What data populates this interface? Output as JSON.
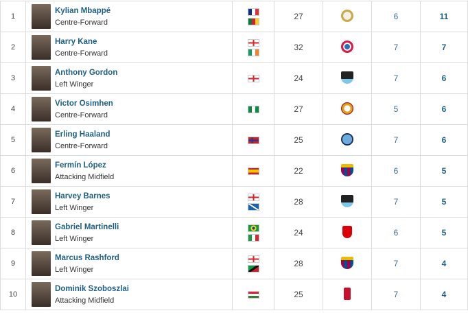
{
  "colors": {
    "link": "#1d5f86",
    "border": "#dcdcdc"
  },
  "rows": [
    {
      "rank": "1",
      "name": "Kylian Mbappé",
      "position": "Centre-Forward",
      "nationalities": [
        "france-flag",
        "cameroon-flag"
      ],
      "age": "27",
      "club": "real-madrid-crest",
      "apps": "6",
      "goals": "11"
    },
    {
      "rank": "2",
      "name": "Harry Kane",
      "position": "Centre-Forward",
      "nationalities": [
        "england-flag",
        "ireland-flag"
      ],
      "age": "32",
      "club": "bayern-munich-crest",
      "apps": "7",
      "goals": "7"
    },
    {
      "rank": "3",
      "name": "Anthony Gordon",
      "position": "Left Winger",
      "nationalities": [
        "england-flag"
      ],
      "age": "24",
      "club": "newcastle-crest",
      "apps": "7",
      "goals": "6"
    },
    {
      "rank": "4",
      "name": "Victor Osimhen",
      "position": "Centre-Forward",
      "nationalities": [
        "nigeria-flag"
      ],
      "age": "27",
      "club": "galatasaray-crest",
      "apps": "5",
      "goals": "6"
    },
    {
      "rank": "5",
      "name": "Erling Haaland",
      "position": "Centre-Forward",
      "nationalities": [
        "norway-flag"
      ],
      "age": "25",
      "club": "manchester-city-crest",
      "apps": "7",
      "goals": "6"
    },
    {
      "rank": "6",
      "name": "Fermín López",
      "position": "Attacking Midfield",
      "nationalities": [
        "spain-flag"
      ],
      "age": "22",
      "club": "barcelona-crest",
      "apps": "6",
      "goals": "5"
    },
    {
      "rank": "7",
      "name": "Harvey Barnes",
      "position": "Left Winger",
      "nationalities": [
        "england-flag",
        "scotland-flag"
      ],
      "age": "28",
      "club": "newcastle-crest",
      "apps": "7",
      "goals": "5"
    },
    {
      "rank": "8",
      "name": "Gabriel Martinelli",
      "position": "Left Winger",
      "nationalities": [
        "brazil-flag",
        "italy-flag"
      ],
      "age": "24",
      "club": "arsenal-crest",
      "apps": "6",
      "goals": "5"
    },
    {
      "rank": "9",
      "name": "Marcus Rashford",
      "position": "Left Winger",
      "nationalities": [
        "england-flag",
        "saint-kitts-nevis-flag"
      ],
      "age": "28",
      "club": "barcelona-crest",
      "apps": "7",
      "goals": "4"
    },
    {
      "rank": "10",
      "name": "Dominik Szoboszlai",
      "position": "Attacking Midfield",
      "nationalities": [
        "hungary-flag"
      ],
      "age": "25",
      "club": "liverpool-crest",
      "apps": "7",
      "goals": "4"
    }
  ]
}
